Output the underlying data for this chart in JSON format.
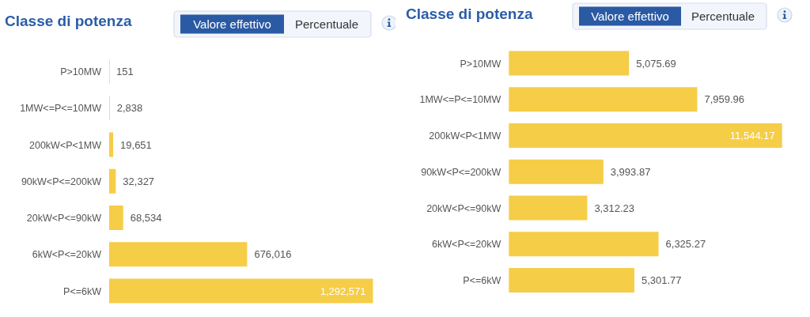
{
  "chart_data": [
    {
      "type": "bar",
      "orientation": "horizontal",
      "title": "Classe di potenza",
      "annotations": [
        "Valore effettivo",
        "Percentuale"
      ],
      "categories": [
        "P>10MW",
        "1MW<=P<=10MW",
        "200kW<P<1MW",
        "90kW<P<=200kW",
        "20kW<P<=90kW",
        "6kW<P<=20kW",
        "P<=6kW"
      ],
      "values": [
        151,
        2838,
        19651,
        32327,
        68534,
        676016,
        1292571
      ],
      "value_labels": [
        "151",
        "2,838",
        "19,651",
        "32,327",
        "68,534",
        "676,016",
        "1,292,571"
      ],
      "color": "#f5cd47"
    },
    {
      "type": "bar",
      "orientation": "horizontal",
      "title": "Classe di potenza",
      "annotations": [
        "Valore effettivo",
        "Percentuale"
      ],
      "categories": [
        "P>10MW",
        "1MW<=P<=10MW",
        "200kW<P<1MW",
        "90kW<P<=200kW",
        "20kW<P<=90kW",
        "6kW<P<=20kW",
        "P<=6kW"
      ],
      "values": [
        5075.69,
        7959.96,
        11544.17,
        3993.87,
        3312.23,
        6325.27,
        5301.77
      ],
      "value_labels": [
        "5,075.69",
        "7,959.96",
        "11,544.17",
        "3,993.87",
        "3,312.23",
        "6,325.27",
        "5,301.77"
      ],
      "color": "#f5cd47"
    }
  ]
}
